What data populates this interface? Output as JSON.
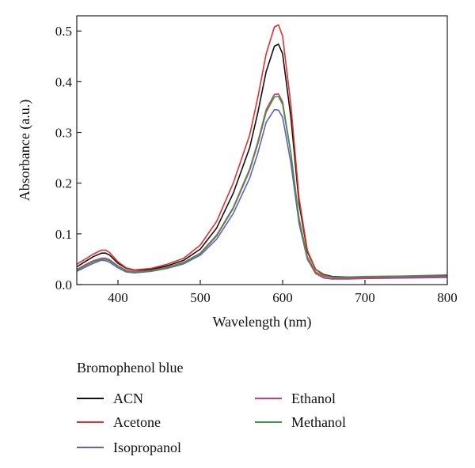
{
  "chart_data": {
    "type": "line",
    "title": "",
    "xlabel": "Wavelength (nm)",
    "ylabel": "Absorbance (a.u.)",
    "xlim": [
      350,
      800
    ],
    "ylim": [
      0,
      0.53
    ],
    "xticks": [
      400,
      500,
      600,
      700,
      800
    ],
    "yticks": [
      0.0,
      0.1,
      0.2,
      0.3,
      0.4,
      0.5
    ],
    "xtick_labels": [
      "400",
      "500",
      "600",
      "700",
      "800"
    ],
    "ytick_labels": [
      "0.0",
      "0.1",
      "0.2",
      "0.3",
      "0.4",
      "0.5"
    ],
    "legend_title": "Bromophenol blue",
    "legend_placement": "bottom",
    "x": [
      350,
      360,
      370,
      380,
      385,
      390,
      400,
      410,
      420,
      440,
      460,
      480,
      500,
      520,
      540,
      560,
      570,
      580,
      590,
      595,
      600,
      610,
      620,
      630,
      640,
      650,
      660,
      680,
      700,
      750,
      800
    ],
    "series": [
      {
        "name": "ACN",
        "color": "#111111",
        "values": [
          0.035,
          0.045,
          0.055,
          0.062,
          0.062,
          0.058,
          0.042,
          0.032,
          0.028,
          0.03,
          0.037,
          0.048,
          0.07,
          0.112,
          0.18,
          0.27,
          0.34,
          0.42,
          0.47,
          0.474,
          0.455,
          0.33,
          0.16,
          0.065,
          0.03,
          0.02,
          0.016,
          0.015,
          0.015,
          0.016,
          0.017
        ]
      },
      {
        "name": "Acetone",
        "color": "#e03030",
        "values": [
          0.04,
          0.05,
          0.06,
          0.068,
          0.068,
          0.063,
          0.045,
          0.033,
          0.029,
          0.032,
          0.04,
          0.052,
          0.078,
          0.125,
          0.2,
          0.295,
          0.37,
          0.455,
          0.508,
          0.512,
          0.49,
          0.355,
          0.17,
          0.068,
          0.03,
          0.019,
          0.015,
          0.014,
          0.014,
          0.015,
          0.016
        ]
      },
      {
        "name": "Isopropanol",
        "color": "#6a5acd",
        "values": [
          0.026,
          0.034,
          0.042,
          0.048,
          0.047,
          0.044,
          0.033,
          0.025,
          0.023,
          0.026,
          0.032,
          0.041,
          0.058,
          0.09,
          0.14,
          0.21,
          0.26,
          0.32,
          0.345,
          0.344,
          0.33,
          0.24,
          0.12,
          0.05,
          0.022,
          0.013,
          0.011,
          0.011,
          0.012,
          0.013,
          0.014
        ]
      },
      {
        "name": "Ethanol",
        "color": "#cc3a7a",
        "values": [
          0.03,
          0.039,
          0.047,
          0.052,
          0.052,
          0.049,
          0.037,
          0.028,
          0.025,
          0.028,
          0.034,
          0.044,
          0.062,
          0.098,
          0.152,
          0.228,
          0.282,
          0.345,
          0.375,
          0.376,
          0.36,
          0.26,
          0.128,
          0.052,
          0.022,
          0.014,
          0.012,
          0.012,
          0.013,
          0.015,
          0.016
        ]
      },
      {
        "name": "Methanol",
        "color": "#3c9a3c",
        "values": [
          0.028,
          0.037,
          0.045,
          0.05,
          0.05,
          0.047,
          0.036,
          0.027,
          0.024,
          0.027,
          0.033,
          0.043,
          0.061,
          0.096,
          0.15,
          0.225,
          0.278,
          0.34,
          0.37,
          0.371,
          0.355,
          0.258,
          0.13,
          0.055,
          0.025,
          0.017,
          0.015,
          0.015,
          0.016,
          0.017,
          0.019
        ]
      }
    ]
  }
}
